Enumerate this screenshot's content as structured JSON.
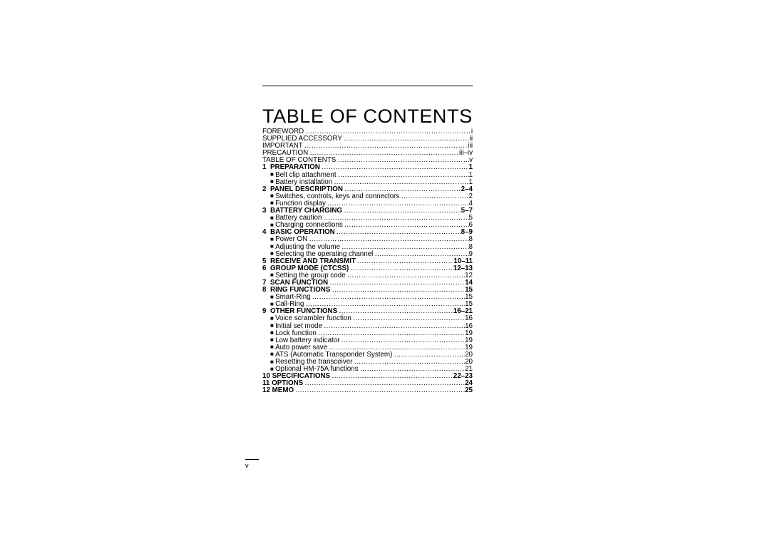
{
  "title": "TABLE OF CONTENTS",
  "folio": "v",
  "entries": [
    {
      "kind": "plain",
      "label": "FOREWORD",
      "page": "i"
    },
    {
      "kind": "plain",
      "label": "SUPPLIED ACCESSORY",
      "page": "ii"
    },
    {
      "kind": "plain",
      "label": "IMPORTANT",
      "page": "iii"
    },
    {
      "kind": "plain",
      "label": "PRECAUTION",
      "page": "iii–iv"
    },
    {
      "kind": "plain",
      "label": "TABLE OF CONTENTS",
      "page": "v"
    },
    {
      "kind": "chapter",
      "num": "1",
      "label": "PREPARATION",
      "page": "1"
    },
    {
      "kind": "sub",
      "label": "Belt clip attachment",
      "page": "1"
    },
    {
      "kind": "sub",
      "label": "Battery installation",
      "page": "1"
    },
    {
      "kind": "chapter",
      "num": "2",
      "label": "PANEL DESCRIPTION",
      "page": "2–4"
    },
    {
      "kind": "sub",
      "label": "Switches, controls, keys and connectors",
      "page": "2"
    },
    {
      "kind": "sub",
      "label": "Function display",
      "page": "4"
    },
    {
      "kind": "chapter",
      "num": "3",
      "label": "BATTERY CHARGING",
      "page": "5–7"
    },
    {
      "kind": "sub",
      "label": "Battery caution",
      "page": "5"
    },
    {
      "kind": "sub",
      "label": "Charging connections",
      "page": "6"
    },
    {
      "kind": "chapter",
      "num": "4",
      "label": "BASIC OPERATION",
      "page": "8–9"
    },
    {
      "kind": "sub",
      "label": "Power ON",
      "page": "8"
    },
    {
      "kind": "sub",
      "label": "Adjusting the volume",
      "page": "8"
    },
    {
      "kind": "sub",
      "label": "Selecting the operating channel",
      "page": "9"
    },
    {
      "kind": "chapter",
      "num": "5",
      "label": "RECEIVE AND TRANSMIT",
      "page": "10–11"
    },
    {
      "kind": "chapter",
      "num": "6",
      "label": "GROUP MODE (CTCSS)",
      "page": "12–13"
    },
    {
      "kind": "sub",
      "label": "Setting the group code",
      "page": "12"
    },
    {
      "kind": "chapter",
      "num": "7",
      "label": "SCAN FUNCTION",
      "page": "14"
    },
    {
      "kind": "chapter",
      "num": "8",
      "label": "RING FUNCTIONS",
      "page": "15"
    },
    {
      "kind": "sub",
      "label": "Smart-Ring",
      "page": "15"
    },
    {
      "kind": "sub",
      "label": "Call-Ring",
      "page": "15"
    },
    {
      "kind": "chapter",
      "num": "9",
      "label": "OTHER FUNCTIONS",
      "page": "16–21"
    },
    {
      "kind": "sub",
      "label": "Voice scrambler function",
      "page": "16"
    },
    {
      "kind": "sub",
      "label": "Initial set mode",
      "page": "16"
    },
    {
      "kind": "sub",
      "label": "Lock function",
      "page": "19"
    },
    {
      "kind": "sub",
      "label": "Low battery indicator",
      "page": "19"
    },
    {
      "kind": "sub",
      "label": "Auto power save",
      "page": "19"
    },
    {
      "kind": "sub",
      "label": "ATS (Automatic Transponder System)",
      "page": "20"
    },
    {
      "kind": "sub",
      "label": "Resetting the transceiver",
      "page": "20"
    },
    {
      "kind": "sub",
      "label": "Optional HM-75A functions",
      "page": "21"
    },
    {
      "kind": "chapter2",
      "num": "10",
      "label": "SPECIFICATIONS",
      "page": "22–23"
    },
    {
      "kind": "chapter2",
      "num": "11",
      "label": "OPTIONS",
      "page": "24"
    },
    {
      "kind": "chapter2",
      "num": "12",
      "label": "MEMO",
      "page": "25"
    }
  ]
}
